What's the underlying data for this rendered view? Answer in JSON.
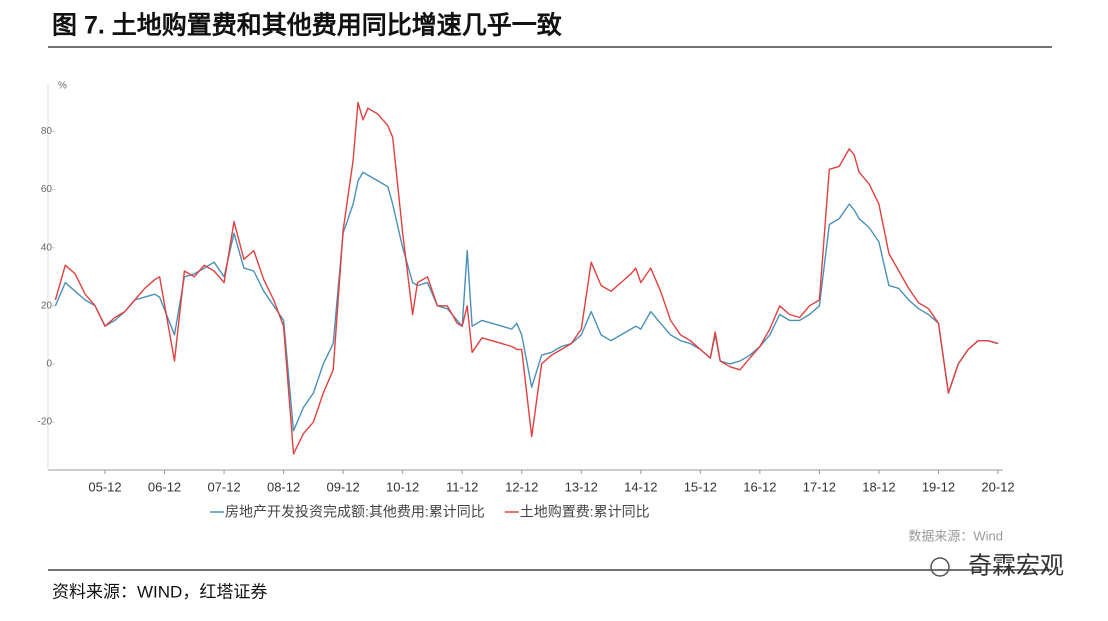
{
  "chart_data": {
    "type": "line",
    "title": "图 7. 土地购置费和其他费用同比增速几乎一致",
    "y_unit": "%",
    "source_note": "数据来源：Wind",
    "source": "资料来源：WIND，红塔证券",
    "watermark": "奇霖宏观",
    "x": [
      "05-02",
      "05-04",
      "05-06",
      "05-08",
      "05-10",
      "05-12",
      "06-02",
      "06-04",
      "06-06",
      "06-08",
      "06-10",
      "06-11",
      "07-02",
      "07-04",
      "07-06",
      "07-08",
      "07-10",
      "07-12",
      "08-02",
      "08-04",
      "08-06",
      "08-08",
      "08-10",
      "08-12",
      "09-02",
      "09-04",
      "09-06",
      "09-08",
      "09-10",
      "09-12",
      "10-02",
      "10-03",
      "10-04",
      "10-05",
      "10-07",
      "10-09",
      "10-10",
      "10-12",
      "11-02",
      "11-03",
      "11-05",
      "11-07",
      "11-09",
      "11-11",
      "11-12",
      "12-01",
      "12-02",
      "12-04",
      "12-06",
      "12-08",
      "12-10",
      "12-11",
      "12-12",
      "13-02",
      "13-04",
      "13-06",
      "13-08",
      "13-10",
      "13-12",
      "14-02",
      "14-04",
      "14-06",
      "14-08",
      "14-10",
      "14-11",
      "14-12",
      "15-02",
      "15-04",
      "15-06",
      "15-08",
      "15-10",
      "15-12",
      "16-02",
      "16-03",
      "16-04",
      "16-06",
      "16-08",
      "16-10",
      "16-12",
      "17-02",
      "17-04",
      "17-06",
      "17-08",
      "17-10",
      "17-12",
      "18-02",
      "18-04",
      "18-06",
      "18-07",
      "18-08",
      "18-10",
      "18-12",
      "19-02",
      "19-04",
      "19-06",
      "19-08",
      "19-10",
      "19-12",
      "20-02",
      "20-04",
      "20-06",
      "20-08",
      "20-10",
      "20-12"
    ],
    "series": [
      {
        "name": "房地产开发投资完成额:其他费用:累计同比",
        "color": "#4a90b8",
        "values": [
          20,
          28,
          25,
          22,
          20,
          13,
          15,
          18,
          22,
          23,
          24,
          23,
          10,
          30,
          31,
          33,
          35,
          30,
          45,
          33,
          32,
          25,
          20,
          15,
          -23,
          -15,
          -10,
          0,
          7,
          45,
          55,
          63,
          66,
          65,
          63,
          61,
          55,
          40,
          28,
          27,
          28,
          20,
          19,
          15,
          13,
          39,
          13,
          15,
          14,
          13,
          12,
          14,
          10,
          -8,
          3,
          4,
          6,
          7,
          10,
          18,
          10,
          8,
          10,
          12,
          13,
          12,
          18,
          14,
          10,
          8,
          7,
          5,
          2,
          10,
          1,
          0,
          1,
          3,
          6,
          10,
          17,
          15,
          15,
          17,
          20,
          48,
          50,
          55,
          53,
          50,
          47,
          42,
          27,
          26,
          22,
          19,
          17,
          14,
          -10,
          0,
          5,
          8,
          8,
          7
        ]
      },
      {
        "name": "土地购置费:累计同比",
        "color": "#e0403f",
        "values": [
          22,
          34,
          31,
          24,
          20,
          13,
          16,
          18,
          22,
          26,
          29,
          30,
          1,
          32,
          30,
          34,
          32,
          28,
          49,
          36,
          39,
          29,
          22,
          13,
          -31,
          -24,
          -20,
          -10,
          -2,
          46,
          70,
          90,
          84,
          88,
          86,
          82,
          78,
          45,
          17,
          28,
          30,
          20,
          20,
          14,
          13,
          20,
          4,
          9,
          8,
          7,
          6,
          5,
          5,
          -25,
          0,
          3,
          5,
          7,
          12,
          35,
          27,
          25,
          28,
          31,
          33,
          28,
          33,
          25,
          15,
          10,
          8,
          5,
          2,
          11,
          1,
          -1,
          -2,
          2,
          6,
          12,
          20,
          17,
          16,
          20,
          22,
          67,
          68,
          74,
          72,
          66,
          62,
          55,
          38,
          32,
          26,
          21,
          19,
          14,
          -10,
          0,
          5,
          8,
          8,
          7
        ]
      }
    ],
    "xticks": [
      "05-12",
      "06-12",
      "07-12",
      "08-12",
      "09-12",
      "10-12",
      "11-12",
      "12-12",
      "13-12",
      "14-12",
      "15-12",
      "16-12",
      "17-12",
      "18-12",
      "19-12",
      "20-12"
    ],
    "ylim": [
      -36.5,
      96
    ],
    "yticks": [
      -20,
      0,
      20,
      40,
      60,
      80
    ]
  }
}
